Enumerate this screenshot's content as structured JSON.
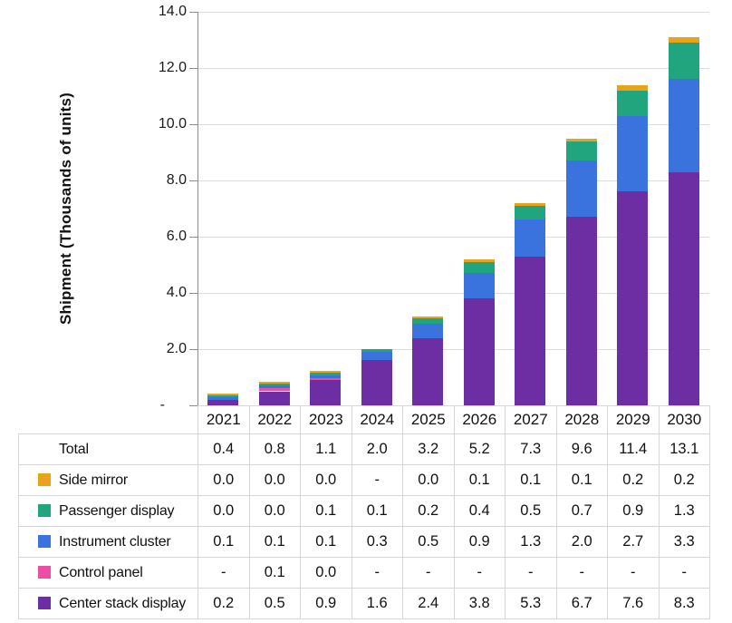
{
  "chart_data": {
    "type": "bar",
    "stacked": true,
    "title": "",
    "ylabel": "Shipment (Thousands of units)",
    "xlabel": "",
    "ylim": [
      0,
      14
    ],
    "grid": true,
    "legend_position": "table-left",
    "categories": [
      "2021",
      "2022",
      "2023",
      "2024",
      "2025",
      "2026",
      "2027",
      "2028",
      "2029",
      "2030"
    ],
    "series": [
      {
        "name": "Center stack display",
        "color": "#6d2da3",
        "values": [
          0.2,
          0.5,
          0.9,
          1.6,
          2.4,
          3.8,
          5.3,
          6.7,
          7.6,
          8.3
        ]
      },
      {
        "name": "Control panel",
        "color": "#ec4ea4",
        "values": [
          null,
          0.1,
          0.0,
          null,
          null,
          null,
          null,
          null,
          null,
          null
        ]
      },
      {
        "name": "Instrument cluster",
        "color": "#3a73de",
        "values": [
          0.1,
          0.1,
          0.1,
          0.3,
          0.5,
          0.9,
          1.3,
          2.0,
          2.7,
          3.3
        ]
      },
      {
        "name": "Passenger display",
        "color": "#21a57e",
        "values": [
          0.0,
          0.0,
          0.1,
          0.1,
          0.2,
          0.4,
          0.5,
          0.7,
          0.9,
          1.3
        ]
      },
      {
        "name": "Side mirror",
        "color": "#e9a31a",
        "values": [
          0.0,
          0.0,
          0.0,
          null,
          0.0,
          0.1,
          0.1,
          0.1,
          0.2,
          0.2
        ]
      }
    ],
    "totals": [
      0.4,
      0.8,
      1.1,
      2.0,
      3.2,
      5.2,
      7.3,
      9.6,
      11.4,
      13.1
    ],
    "yticks": [
      {
        "label": "14.0",
        "value": 14
      },
      {
        "label": "12.0",
        "value": 12
      },
      {
        "label": "10.0",
        "value": 10
      },
      {
        "label": "8.0",
        "value": 8
      },
      {
        "label": "6.0",
        "value": 6
      },
      {
        "label": "4.0",
        "value": 4
      },
      {
        "label": "2.0",
        "value": 2
      },
      {
        "label": "-",
        "value": 0
      }
    ]
  },
  "table": {
    "columns": [
      "2021",
      "2022",
      "2023",
      "2024",
      "2025",
      "2026",
      "2027",
      "2028",
      "2029",
      "2030"
    ],
    "rows": [
      {
        "label": "Total",
        "swatch": null,
        "values": [
          "0.4",
          "0.8",
          "1.1",
          "2.0",
          "3.2",
          "5.2",
          "7.3",
          "9.6",
          "11.4",
          "13.1"
        ]
      },
      {
        "label": "Side mirror",
        "swatch": "#e9a31a",
        "values": [
          "0.0",
          "0.0",
          "0.0",
          "-",
          "0.0",
          "0.1",
          "0.1",
          "0.1",
          "0.2",
          "0.2"
        ]
      },
      {
        "label": "Passenger display",
        "swatch": "#21a57e",
        "values": [
          "0.0",
          "0.0",
          "0.1",
          "0.1",
          "0.2",
          "0.4",
          "0.5",
          "0.7",
          "0.9",
          "1.3"
        ]
      },
      {
        "label": "Instrument cluster",
        "swatch": "#3a73de",
        "values": [
          "0.1",
          "0.1",
          "0.1",
          "0.3",
          "0.5",
          "0.9",
          "1.3",
          "2.0",
          "2.7",
          "3.3"
        ]
      },
      {
        "label": "Control panel",
        "swatch": "#ec4ea4",
        "values": [
          "-",
          "0.1",
          "0.0",
          "-",
          "-",
          "-",
          "-",
          "-",
          "-",
          "-"
        ]
      },
      {
        "label": "Center stack display",
        "swatch": "#6d2da3",
        "values": [
          "0.2",
          "0.5",
          "0.9",
          "1.6",
          "2.4",
          "3.8",
          "5.3",
          "6.7",
          "7.6",
          "8.3"
        ]
      }
    ]
  }
}
